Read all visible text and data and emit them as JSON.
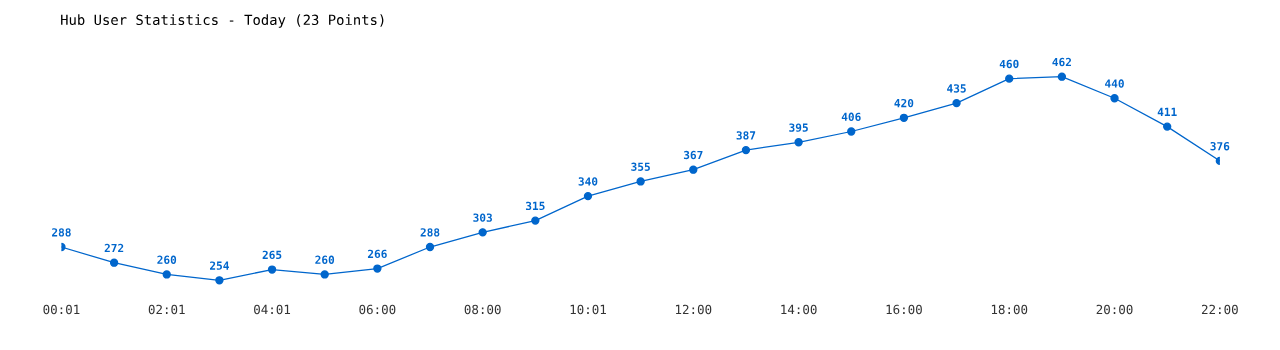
{
  "chart_data": {
    "type": "line",
    "title": "Hub User Statistics - Today (23 Points)",
    "categories": [
      "00:01",
      null,
      "02:01",
      null,
      "04:01",
      null,
      "06:00",
      null,
      "08:00",
      null,
      "10:01",
      null,
      "12:00",
      null,
      "14:00",
      null,
      "16:00",
      null,
      "18:00",
      null,
      "20:00",
      null,
      "22:00"
    ],
    "series": [
      {
        "color": "#0066cc",
        "values": [
          288,
          272,
          260,
          254,
          265,
          260,
          266,
          288,
          303,
          315,
          340,
          355,
          367,
          387,
          395,
          406,
          420,
          435,
          460,
          462,
          440,
          411,
          376
        ]
      }
    ],
    "data_labels": true,
    "marker": "circle",
    "line_style": "solid",
    "grid": false,
    "legend": false,
    "tick_labels": "x"
  }
}
